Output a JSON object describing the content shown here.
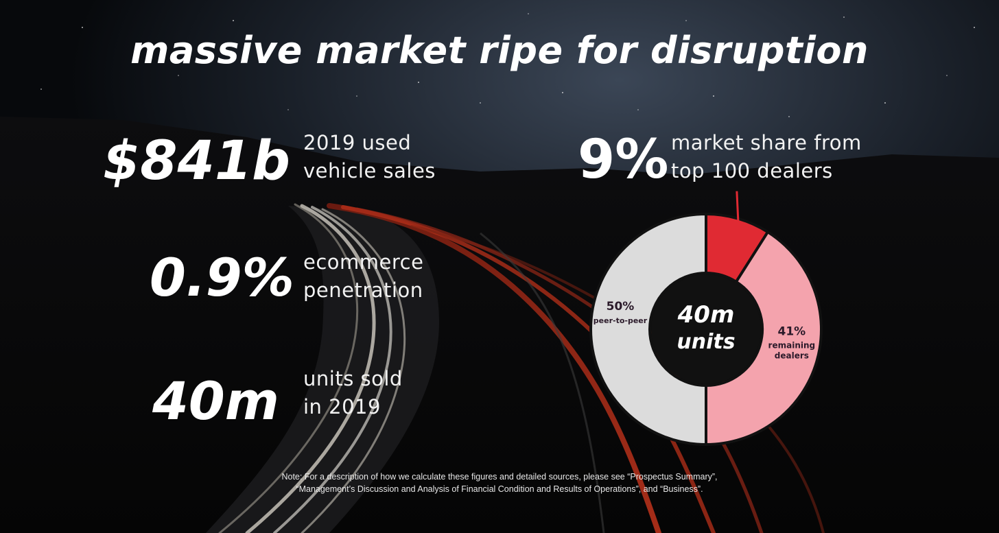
{
  "title": "massive market ripe for disruption",
  "stats": [
    {
      "value": "$841b",
      "line1": "2019 used",
      "line2": "vehicle sales"
    },
    {
      "value": "0.9%",
      "line1": "ecommerce",
      "line2": "penetration"
    },
    {
      "value": "40m",
      "line1": "units sold",
      "line2": "in 2019"
    }
  ],
  "share_callout": {
    "value": "9%",
    "line1": "market share from",
    "line2": "top 100 dealers"
  },
  "colors": {
    "peer_to_peer": "#dcdcdc",
    "top_100_dealers": "#e02a33",
    "remaining_dealers": "#f4a3ad",
    "donut_hole": "#111111"
  },
  "chart_data": {
    "type": "pie",
    "variant": "donut",
    "center_label": [
      "40m",
      "units"
    ],
    "slices": [
      {
        "id": "peer_to_peer",
        "value": 50,
        "pct_label": "50%",
        "name": "peer-to-peer"
      },
      {
        "id": "top_100_dealers",
        "value": 9,
        "pct_label": "",
        "name": ""
      },
      {
        "id": "remaining_dealers",
        "value": 41,
        "pct_label": "41%",
        "name": "remaining dealers"
      }
    ]
  },
  "note": {
    "line1": "Note: For a description of how we calculate these figures and detailed sources, please see “Prospectus Summary”,",
    "line2": "“Management’s Discussion and Analysis of Financial Condition and Results of Operations”, and “Business”."
  }
}
